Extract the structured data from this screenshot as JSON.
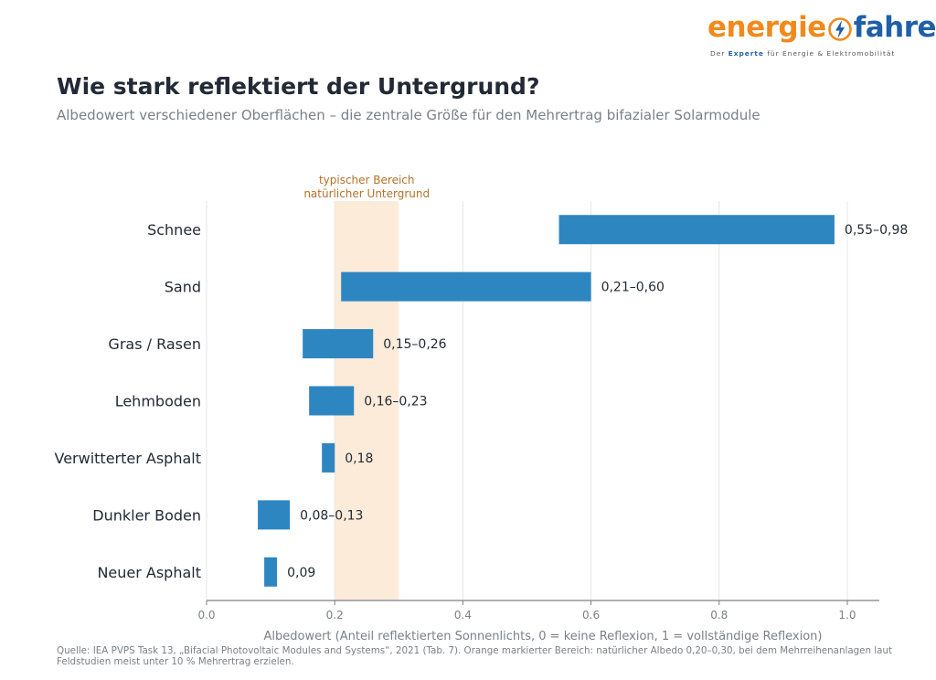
{
  "logo": {
    "part1": "energie",
    "part2": "fahrer",
    "tagline_pre": "Der ",
    "tagline_bold": "Experte",
    "tagline_post": " für Energie & Elektromobilität",
    "icon": "lightning-bolt-icon"
  },
  "header": {
    "title": "Wie stark reflektiert der Untergrund?",
    "subtitle": "Albedowert verschiedener Oberflächen – die zentrale Größe für den Mehrertrag bifazialer Solarmodule"
  },
  "chart_data": {
    "type": "bar",
    "orientation": "horizontal-range",
    "categories": [
      "Schnee",
      "Sand",
      "Gras / Rasen",
      "Lehmboden",
      "Verwitterter Asphalt",
      "Dunkler Boden",
      "Neuer Asphalt"
    ],
    "ranges": [
      [
        0.55,
        0.98
      ],
      [
        0.21,
        0.6
      ],
      [
        0.15,
        0.26
      ],
      [
        0.16,
        0.23
      ],
      [
        0.18,
        0.2
      ],
      [
        0.08,
        0.13
      ],
      [
        0.09,
        0.11
      ]
    ],
    "value_labels": [
      "0,55–0,98",
      "0,21–0,60",
      "0,15–0,26",
      "0,16–0,23",
      "0,18",
      "0,08–0,13",
      "0,09"
    ],
    "xlabel": "Albedowert (Anteil reflektierten Sonnenlichts, 0 = keine Reflexion, 1 = vollständige Reflexion)",
    "xlim": [
      0,
      1.05
    ],
    "xticks": [
      0,
      0.2,
      0.4,
      0.6,
      0.8,
      1.0
    ],
    "xtick_labels": [
      "0.0",
      "0.2",
      "0.4",
      "0.6",
      "0.8",
      "1.0"
    ],
    "grid": "vertical",
    "highlight": {
      "range": [
        0.2,
        0.3
      ],
      "label_line1": "typischer Bereich",
      "label_line2": "natürlicher Untergrund",
      "color": "#fdebd9",
      "label_color": "#b5712a"
    },
    "bar_color": "#2e86c1",
    "axis_color": "#7a8089"
  },
  "footer": {
    "source": "Quelle: IEA PVPS Task 13, „Bifacial Photovoltaic Modules and Systems“, 2021 (Tab. 7). Orange markierter Bereich: natürlicher Albedo 0,20–0,30, bei dem Mehrreihenanlagen laut Feldstudien meist unter 10 % Mehrertrag erzielen."
  }
}
